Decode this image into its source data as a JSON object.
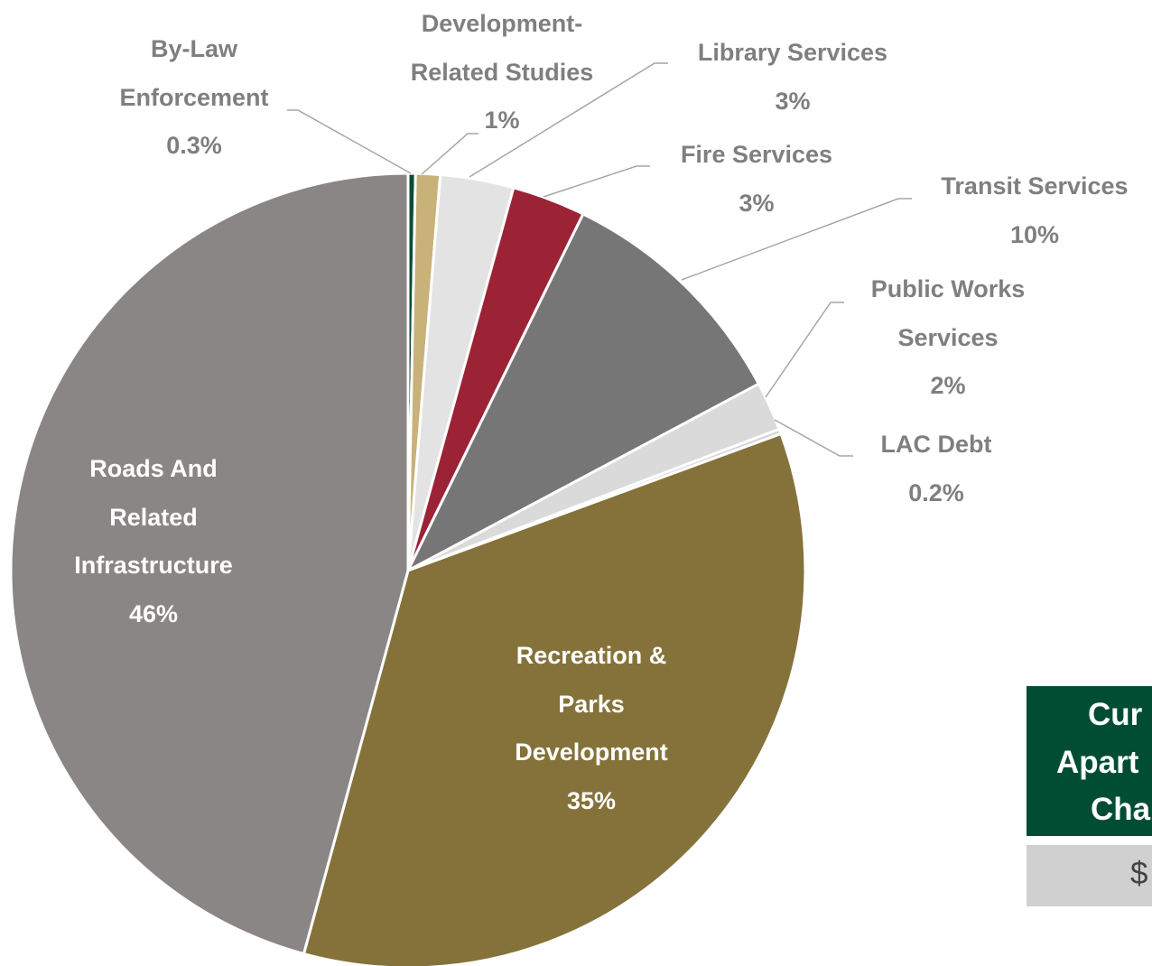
{
  "chart_data": {
    "type": "pie",
    "categories": [
      "By-Law Enforcement",
      "Development-Related Studies",
      "Library Services",
      "Fire Services",
      "Transit Services",
      "Public Works Services",
      "LAC Debt",
      "Recreation & Parks Development",
      "Roads And Related Infrastructure"
    ],
    "values": [
      0.3,
      1,
      3,
      3,
      10,
      2,
      0.2,
      35,
      46
    ],
    "value_labels": [
      "0.3%",
      "1%",
      "3%",
      "3%",
      "10%",
      "2%",
      "0.2%",
      "35%",
      "46%"
    ],
    "colors": [
      "#0b4d35",
      "#c8b27a",
      "#e3e3e3",
      "#9b2335",
      "#767676",
      "#dadada",
      "#d4d4d4",
      "#85723a",
      "#8a8685"
    ]
  },
  "table": {
    "header": [
      "Cur",
      "Apart",
      "Cha"
    ],
    "value": "$"
  }
}
